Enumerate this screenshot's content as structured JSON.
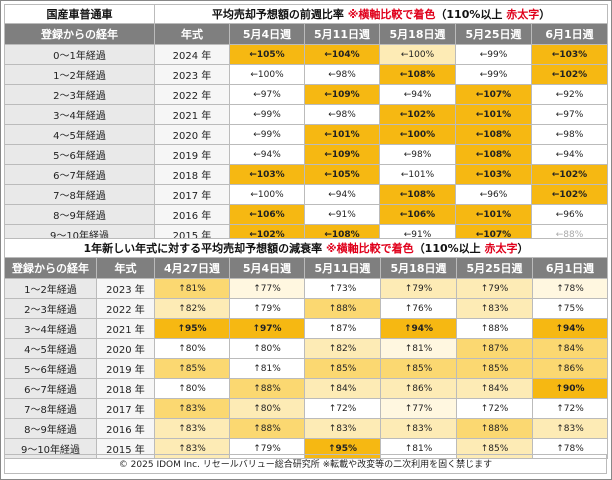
{
  "table1": {
    "corner_title": "国産車普通車",
    "title_prefix": "平均売却予想額の前週比率 ",
    "title_red1": "※横軸比較で着色",
    "title_mid": "（110%以上 ",
    "title_red2": "赤太字",
    "title_suffix": "）",
    "col_label": "登録からの経年",
    "col_year": "年式",
    "weeks": [
      "5月4日週",
      "5月11日週",
      "5月18日週",
      "5月25日週",
      "6月1日週"
    ],
    "rows": [
      {
        "label": "0～1年経過",
        "year": "2024 年",
        "cells": [
          {
            "t": "←105%",
            "c": "strong"
          },
          {
            "t": "←104%",
            "c": "strong"
          },
          {
            "t": "←100%",
            "c": "light"
          },
          {
            "t": "←99%",
            "c": "white"
          },
          {
            "t": "←103%",
            "c": "strong"
          }
        ]
      },
      {
        "label": "1～2年経過",
        "year": "2023 年",
        "cells": [
          {
            "t": "←100%",
            "c": "white"
          },
          {
            "t": "←98%",
            "c": "white"
          },
          {
            "t": "←108%",
            "c": "strong"
          },
          {
            "t": "←99%",
            "c": "white"
          },
          {
            "t": "←102%",
            "c": "strong"
          }
        ]
      },
      {
        "label": "2～3年経過",
        "year": "2022 年",
        "cells": [
          {
            "t": "←97%",
            "c": "white"
          },
          {
            "t": "←109%",
            "c": "strong"
          },
          {
            "t": "←94%",
            "c": "white"
          },
          {
            "t": "←107%",
            "c": "strong"
          },
          {
            "t": "←92%",
            "c": "white"
          }
        ]
      },
      {
        "label": "3～4年経過",
        "year": "2021 年",
        "cells": [
          {
            "t": "←99%",
            "c": "white"
          },
          {
            "t": "←98%",
            "c": "white"
          },
          {
            "t": "←102%",
            "c": "strong"
          },
          {
            "t": "←101%",
            "c": "strong"
          },
          {
            "t": "←97%",
            "c": "white"
          }
        ]
      },
      {
        "label": "4～5年経過",
        "year": "2020 年",
        "cells": [
          {
            "t": "←99%",
            "c": "white"
          },
          {
            "t": "←101%",
            "c": "strong"
          },
          {
            "t": "←100%",
            "c": "strong"
          },
          {
            "t": "←108%",
            "c": "strong"
          },
          {
            "t": "←98%",
            "c": "white"
          }
        ]
      },
      {
        "label": "5～6年経過",
        "year": "2019 年",
        "cells": [
          {
            "t": "←94%",
            "c": "white"
          },
          {
            "t": "←109%",
            "c": "strong"
          },
          {
            "t": "←98%",
            "c": "white"
          },
          {
            "t": "←108%",
            "c": "strong"
          },
          {
            "t": "←94%",
            "c": "white"
          }
        ]
      },
      {
        "label": "6～7年経過",
        "year": "2018 年",
        "cells": [
          {
            "t": "←103%",
            "c": "strong"
          },
          {
            "t": "←105%",
            "c": "strong"
          },
          {
            "t": "←101%",
            "c": "white"
          },
          {
            "t": "←103%",
            "c": "strong"
          },
          {
            "t": "←102%",
            "c": "strong"
          }
        ]
      },
      {
        "label": "7～8年経過",
        "year": "2017 年",
        "cells": [
          {
            "t": "←100%",
            "c": "white"
          },
          {
            "t": "←94%",
            "c": "white"
          },
          {
            "t": "←108%",
            "c": "strong"
          },
          {
            "t": "←96%",
            "c": "white"
          },
          {
            "t": "←102%",
            "c": "strong"
          }
        ]
      },
      {
        "label": "8～9年経過",
        "year": "2016 年",
        "cells": [
          {
            "t": "←106%",
            "c": "strong"
          },
          {
            "t": "←91%",
            "c": "white"
          },
          {
            "t": "←106%",
            "c": "strong"
          },
          {
            "t": "←101%",
            "c": "strong"
          },
          {
            "t": "←96%",
            "c": "white"
          }
        ]
      },
      {
        "label": "9～10年経過",
        "year": "2015 年",
        "cells": [
          {
            "t": "←102%",
            "c": "strong"
          },
          {
            "t": "←108%",
            "c": "strong"
          },
          {
            "t": "←91%",
            "c": "white"
          },
          {
            "t": "←107%",
            "c": "strong"
          },
          {
            "t": "←88%",
            "c": "whitemuted"
          }
        ]
      }
    ]
  },
  "table2": {
    "title_prefix": "1年新しい年式に対する平均売却予想額の減衰率 ",
    "title_red1": "※横軸比較で着色",
    "title_mid": "（110%以上 ",
    "title_red2": "赤太字",
    "title_suffix": "）",
    "col_label": "登録からの経年",
    "col_year": "年式",
    "weeks": [
      "4月27日週",
      "5月4日週",
      "5月11日週",
      "5月18日週",
      "5月25日週",
      "6月1日週"
    ],
    "rows": [
      {
        "label": "1～2年経過",
        "year": "2023 年",
        "cells": [
          {
            "t": "↑81%",
            "c": "mid"
          },
          {
            "t": "↑77%",
            "c": "pale"
          },
          {
            "t": "↑73%",
            "c": "white"
          },
          {
            "t": "↑79%",
            "c": "light"
          },
          {
            "t": "↑79%",
            "c": "light"
          },
          {
            "t": "↑78%",
            "c": "pale"
          }
        ]
      },
      {
        "label": "2～3年経過",
        "year": "2022 年",
        "cells": [
          {
            "t": "↑82%",
            "c": "light"
          },
          {
            "t": "↑79%",
            "c": "white"
          },
          {
            "t": "↑88%",
            "c": "mid"
          },
          {
            "t": "↑76%",
            "c": "white"
          },
          {
            "t": "↑83%",
            "c": "light"
          },
          {
            "t": "↑75%",
            "c": "white"
          }
        ]
      },
      {
        "label": "3～4年経過",
        "year": "2021 年",
        "cells": [
          {
            "t": "↑95%",
            "c": "strong"
          },
          {
            "t": "↑97%",
            "c": "strong"
          },
          {
            "t": "↑87%",
            "c": "white"
          },
          {
            "t": "↑94%",
            "c": "strong"
          },
          {
            "t": "↑88%",
            "c": "white"
          },
          {
            "t": "↑94%",
            "c": "strong"
          }
        ]
      },
      {
        "label": "4～5年経過",
        "year": "2020 年",
        "cells": [
          {
            "t": "↑80%",
            "c": "white"
          },
          {
            "t": "↑80%",
            "c": "white"
          },
          {
            "t": "↑82%",
            "c": "light"
          },
          {
            "t": "↑81%",
            "c": "pale"
          },
          {
            "t": "↑87%",
            "c": "mid"
          },
          {
            "t": "↑84%",
            "c": "mid"
          }
        ]
      },
      {
        "label": "5～6年経過",
        "year": "2019 年",
        "cells": [
          {
            "t": "↑85%",
            "c": "mid"
          },
          {
            "t": "↑81%",
            "c": "white"
          },
          {
            "t": "↑85%",
            "c": "mid"
          },
          {
            "t": "↑85%",
            "c": "mid"
          },
          {
            "t": "↑85%",
            "c": "mid"
          },
          {
            "t": "↑86%",
            "c": "mid"
          }
        ]
      },
      {
        "label": "6～7年経過",
        "year": "2018 年",
        "cells": [
          {
            "t": "↑80%",
            "c": "white"
          },
          {
            "t": "↑88%",
            "c": "mid"
          },
          {
            "t": "↑84%",
            "c": "light"
          },
          {
            "t": "↑86%",
            "c": "light"
          },
          {
            "t": "↑84%",
            "c": "light"
          },
          {
            "t": "↑90%",
            "c": "strong"
          }
        ]
      },
      {
        "label": "7～8年経過",
        "year": "2017 年",
        "cells": [
          {
            "t": "↑83%",
            "c": "mid"
          },
          {
            "t": "↑80%",
            "c": "light"
          },
          {
            "t": "↑72%",
            "c": "white"
          },
          {
            "t": "↑77%",
            "c": "pale"
          },
          {
            "t": "↑72%",
            "c": "white"
          },
          {
            "t": "↑72%",
            "c": "white"
          }
        ]
      },
      {
        "label": "8～9年経過",
        "year": "2016 年",
        "cells": [
          {
            "t": "↑83%",
            "c": "light"
          },
          {
            "t": "↑88%",
            "c": "mid"
          },
          {
            "t": "↑83%",
            "c": "light"
          },
          {
            "t": "↑83%",
            "c": "light"
          },
          {
            "t": "↑88%",
            "c": "mid"
          },
          {
            "t": "↑83%",
            "c": "light"
          }
        ]
      },
      {
        "label": "9～10年経過",
        "year": "2015 年",
        "cells": [
          {
            "t": "↑83%",
            "c": "light"
          },
          {
            "t": "↑79%",
            "c": "white"
          },
          {
            "t": "↑95%",
            "c": "strong"
          },
          {
            "t": "↑81%",
            "c": "white"
          },
          {
            "t": "↑85%",
            "c": "light"
          },
          {
            "t": "↑78%",
            "c": "white"
          }
        ]
      }
    ]
  },
  "footer": "© 2025 IDOM Inc. リセールバリュー総合研究所 ※転載や改変等の二次利用を固く禁じます",
  "colors": {
    "strong": "#f6b812",
    "mid": "#fbd871",
    "light": "#fdebb5",
    "pale": "#fff7e0",
    "header": "#7f7f7f",
    "red": "#e0001b"
  }
}
